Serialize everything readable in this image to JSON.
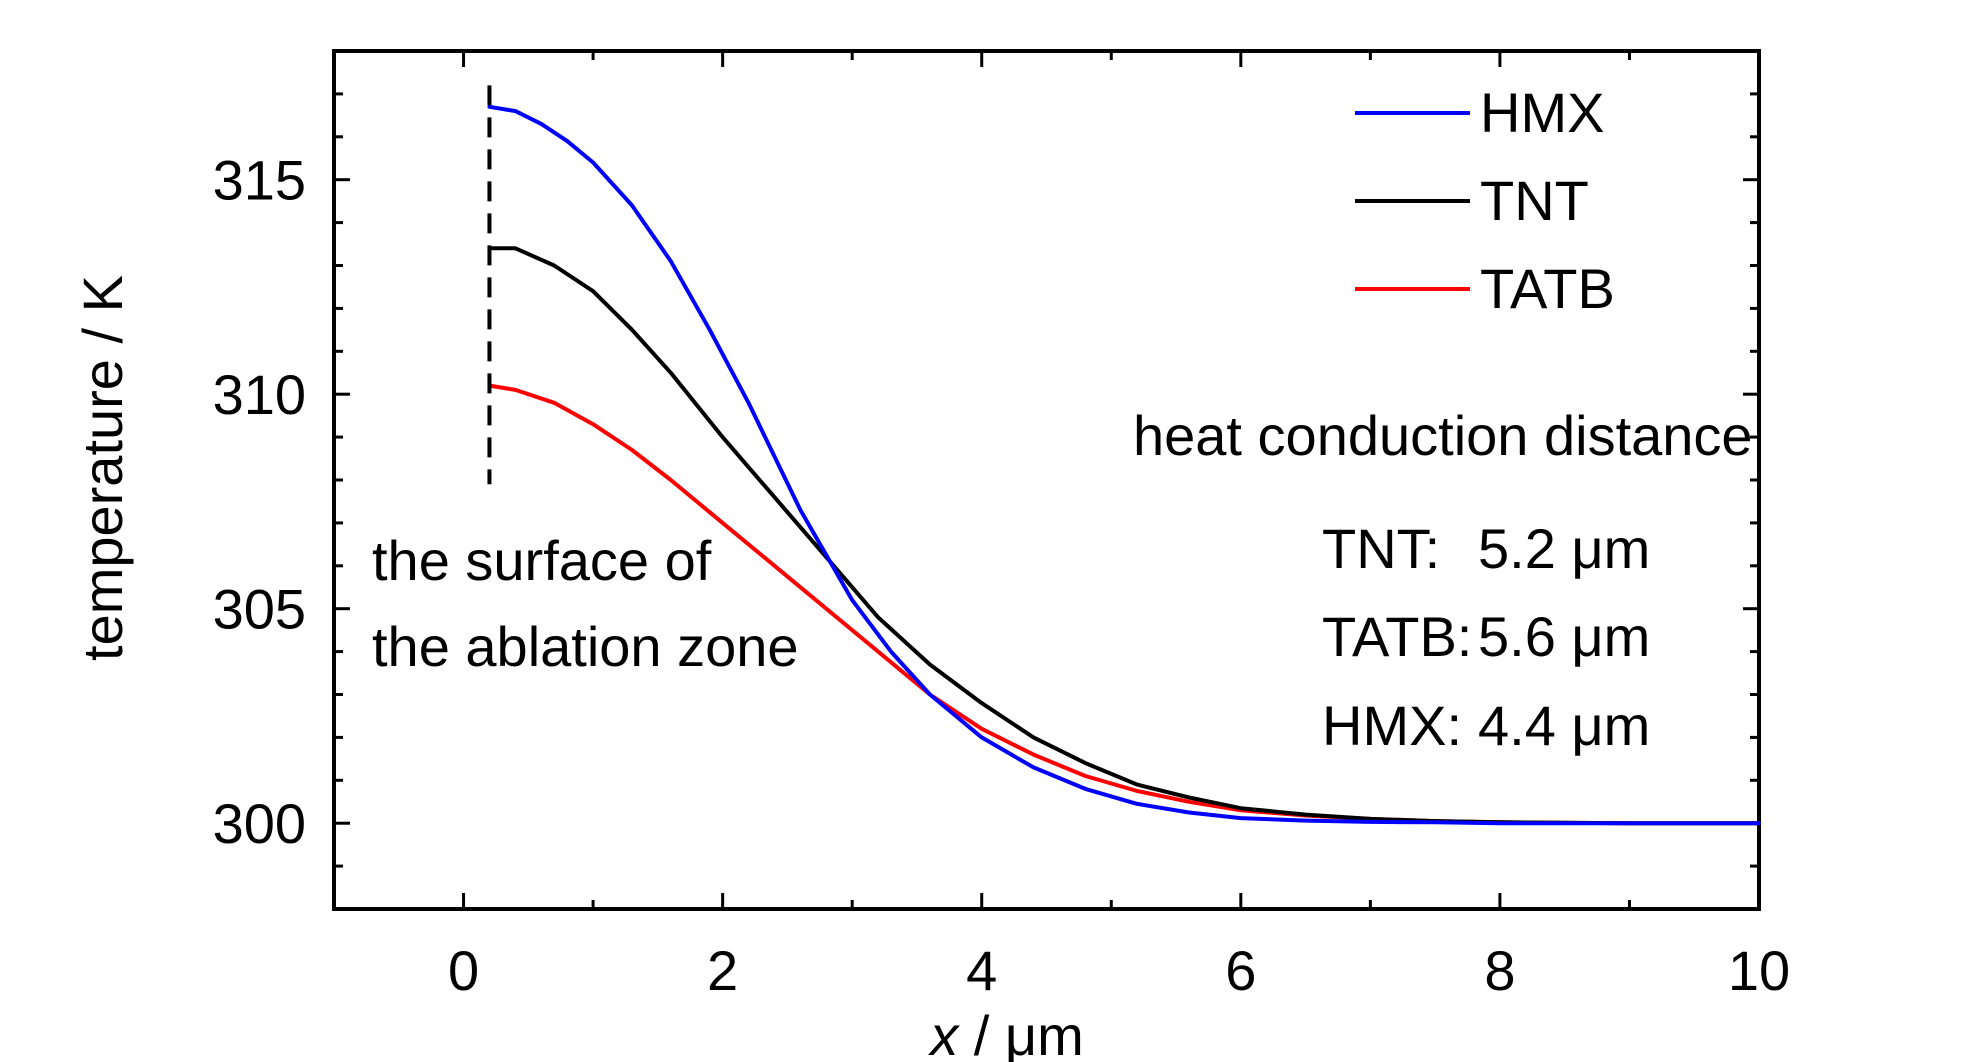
{
  "chart_data": {
    "type": "line",
    "title": "",
    "xlabel": {
      "var": "x",
      "unit": " / μm"
    },
    "ylabel": "temperature / K",
    "xlim": [
      -1,
      10
    ],
    "ylim": [
      298,
      318
    ],
    "x_ticks": [
      0,
      2,
      4,
      6,
      8,
      10
    ],
    "y_ticks": [
      300,
      305,
      310,
      315
    ],
    "x_tick_labels": [
      "0",
      "2",
      "4",
      "6",
      "8",
      "10"
    ],
    "y_tick_labels": [
      "300",
      "305",
      "310",
      "315"
    ],
    "grid": false,
    "legend_position": "top-right",
    "series": [
      {
        "name": "HMX",
        "color": "#0000ff",
        "x": [
          0.2,
          0.4,
          0.6,
          0.8,
          1.0,
          1.3,
          1.6,
          1.9,
          2.2,
          2.6,
          3.0,
          3.3,
          3.6,
          4.0,
          4.4,
          4.8,
          5.2,
          5.6,
          6.0,
          6.5,
          7.0,
          7.5,
          8.0,
          9.0,
          10.0
        ],
        "y": [
          316.7,
          316.6,
          316.3,
          315.9,
          315.4,
          314.4,
          313.1,
          311.5,
          309.8,
          307.3,
          305.2,
          304.0,
          303.0,
          302.0,
          301.3,
          300.8,
          300.45,
          300.25,
          300.12,
          300.06,
          300.03,
          300.02,
          300.0,
          300.0,
          300.0
        ]
      },
      {
        "name": "TNT",
        "color": "#000000",
        "x": [
          0.2,
          0.4,
          0.7,
          1.0,
          1.3,
          1.6,
          2.0,
          2.4,
          2.8,
          3.2,
          3.6,
          4.0,
          4.4,
          4.8,
          5.2,
          5.6,
          6.0,
          6.5,
          7.0,
          7.5,
          8.0,
          9.0,
          10.0
        ],
        "y": [
          313.4,
          313.4,
          313.0,
          312.4,
          311.5,
          310.5,
          309.0,
          307.6,
          306.2,
          304.8,
          303.7,
          302.8,
          302.0,
          301.4,
          300.9,
          300.6,
          300.35,
          300.2,
          300.1,
          300.05,
          300.02,
          300.0,
          300.0
        ]
      },
      {
        "name": "TATB",
        "color": "#ff0000",
        "x": [
          0.2,
          0.4,
          0.7,
          1.0,
          1.3,
          1.6,
          2.0,
          2.4,
          2.8,
          3.2,
          3.6,
          4.0,
          4.4,
          4.8,
          5.2,
          5.6,
          6.0,
          6.5,
          7.0,
          7.5,
          8.0,
          9.0,
          10.0
        ],
        "y": [
          310.2,
          310.1,
          309.8,
          309.3,
          308.7,
          308.0,
          307.0,
          306.0,
          305.0,
          304.0,
          303.0,
          302.2,
          301.6,
          301.1,
          300.75,
          300.5,
          300.3,
          300.18,
          300.1,
          300.05,
          300.02,
          300.0,
          300.0
        ]
      }
    ],
    "annotations": {
      "surface_marker_x": 0.2,
      "surface_marker_y_range": [
        307.9,
        317.2
      ],
      "surface_text": [
        "the surface of",
        "the ablation zone"
      ],
      "distance_title": "heat conduction distance",
      "distances": [
        {
          "label": "TNT:",
          "value": "5.2 μm"
        },
        {
          "label": "TATB:",
          "value": "5.6 μm"
        },
        {
          "label": "HMX:",
          "value": "4.4 μm"
        }
      ]
    }
  }
}
